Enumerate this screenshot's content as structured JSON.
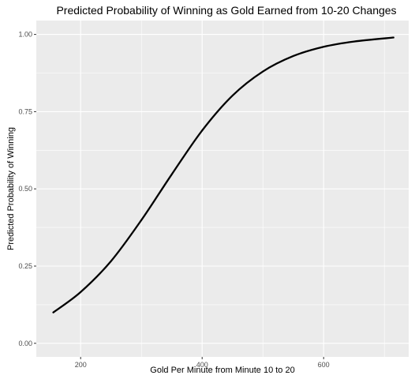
{
  "chart_data": {
    "type": "line",
    "title": "Predicted Probability of Winning as Gold Earned from 10-20 Changes",
    "xlabel": "Gold Per Minute from Minute 10 to 20",
    "ylabel": "Predicted Probability of Winning",
    "xlim": [
      127,
      740
    ],
    "ylim": [
      -0.044,
      1.045
    ],
    "x_ticks": [
      200,
      400,
      600
    ],
    "x_tick_labels": [
      "200",
      "400",
      "600"
    ],
    "y_ticks": [
      0,
      0.25,
      0.5,
      0.75,
      1
    ],
    "y_tick_labels": [
      "0.00",
      "0.25",
      "0.50",
      "0.75",
      "1.00"
    ],
    "grid": true,
    "colors": {
      "panel": "#ebebeb",
      "grid": "#ffffff",
      "line": "#000000",
      "tick_text": "#4d4d4d"
    },
    "series": [
      {
        "x": [
          155,
          200,
          250,
          300,
          350,
          400,
          450,
          500,
          550,
          600,
          650,
          715
        ],
        "y": [
          0.1,
          0.166,
          0.266,
          0.399,
          0.547,
          0.689,
          0.802,
          0.88,
          0.93,
          0.96,
          0.977,
          0.99
        ]
      }
    ]
  }
}
